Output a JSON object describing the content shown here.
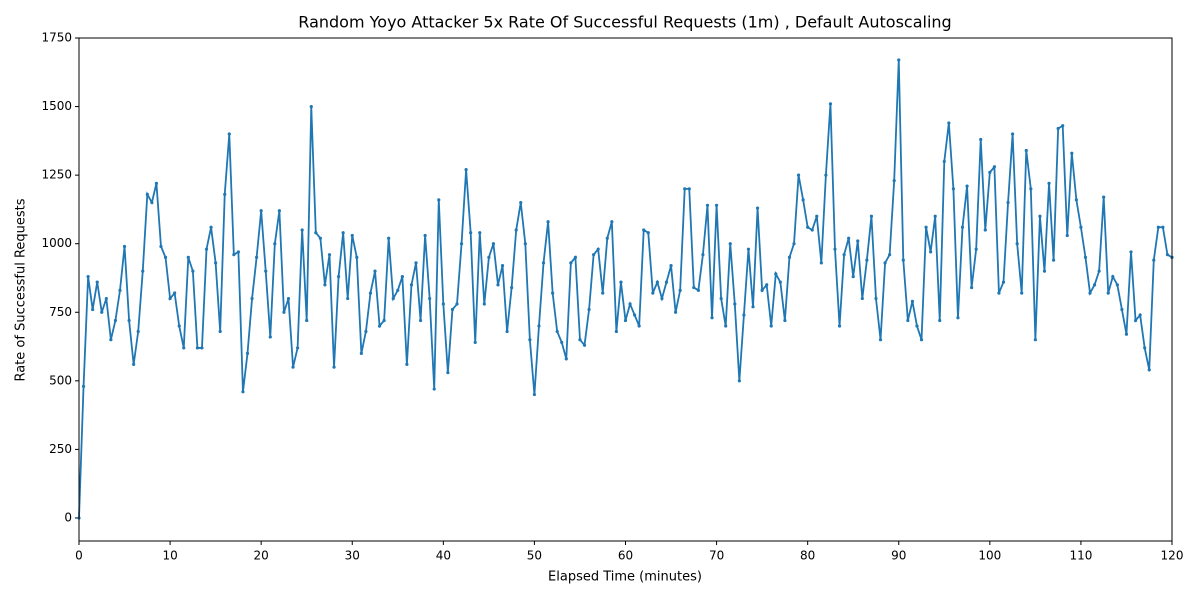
{
  "chart_data": {
    "type": "line",
    "title": "Random Yoyo Attacker 5x Rate Of Successful Requests (1m) , Default Autoscaling",
    "x_label": "Elapsed Time (minutes)",
    "y_label": "Rate of Successful Requests",
    "xlim": [
      0,
      120
    ],
    "xticks": [
      0,
      10,
      20,
      30,
      40,
      50,
      60,
      70,
      80,
      90,
      100,
      110,
      120
    ],
    "ylim": [
      -84,
      1750
    ],
    "yticks": [
      0,
      250,
      500,
      750,
      1000,
      1250,
      1500,
      1750
    ],
    "grid": false,
    "x": [
      0,
      0.5,
      1,
      1.5,
      2,
      2.5,
      3,
      3.5,
      4,
      4.5,
      5,
      5.5,
      6,
      6.5,
      7,
      7.5,
      8,
      8.5,
      9,
      9.5,
      10,
      10.5,
      11,
      11.5,
      12,
      12.5,
      13,
      13.5,
      14,
      14.5,
      15,
      15.5,
      16,
      16.5,
      17,
      17.5,
      18,
      18.5,
      19,
      19.5,
      20,
      20.5,
      21,
      21.5,
      22,
      22.5,
      23,
      23.5,
      24,
      24.5,
      25,
      25.5,
      26,
      26.5,
      27,
      27.5,
      28,
      28.5,
      29,
      29.5,
      30,
      30.5,
      31,
      31.5,
      32,
      32.5,
      33,
      33.5,
      34,
      34.5,
      35,
      35.5,
      36,
      36.5,
      37,
      37.5,
      38,
      38.5,
      39,
      39.5,
      40,
      40.5,
      41,
      41.5,
      42,
      42.5,
      43,
      43.5,
      44,
      44.5,
      45,
      45.5,
      46,
      46.5,
      47,
      47.5,
      48,
      48.5,
      49,
      49.5,
      50,
      50.5,
      51,
      51.5,
      52,
      52.5,
      53,
      53.5,
      54,
      54.5,
      55,
      55.5,
      56,
      56.5,
      57,
      57.5,
      58,
      58.5,
      59,
      59.5,
      60,
      60.5,
      61,
      61.5,
      62,
      62.5,
      63,
      63.5,
      64,
      64.5,
      65,
      65.5,
      66,
      66.5,
      67,
      67.5,
      68,
      68.5,
      69,
      69.5,
      70,
      70.5,
      71,
      71.5,
      72,
      72.5,
      73,
      73.5,
      74,
      74.5,
      75,
      75.5,
      76,
      76.5,
      77,
      77.5,
      78,
      78.5,
      79,
      79.5,
      80,
      80.5,
      81,
      81.5,
      82,
      82.5,
      83,
      83.5,
      84,
      84.5,
      85,
      85.5,
      86,
      86.5,
      87,
      87.5,
      88,
      88.5,
      89,
      89.5,
      90,
      90.5,
      91,
      91.5,
      92,
      92.5,
      93,
      93.5,
      94,
      94.5,
      95,
      95.5,
      96,
      96.5,
      97,
      97.5,
      98,
      98.5,
      99,
      99.5,
      100,
      100.5,
      101,
      101.5,
      102,
      102.5,
      103,
      103.5,
      104,
      104.5,
      105,
      105.5,
      106,
      106.5,
      107,
      107.5,
      108,
      108.5,
      109,
      109.5,
      110,
      110.5,
      111,
      111.5,
      112,
      112.5,
      113,
      113.5,
      114,
      114.5,
      115,
      115.5,
      116,
      116.5,
      117,
      117.5,
      118,
      118.5,
      119,
      119.5,
      120
    ],
    "series": [
      {
        "color": "#1f77b4",
        "values": [
          0,
          480,
          880,
          760,
          860,
          750,
          800,
          650,
          720,
          830,
          990,
          720,
          560,
          680,
          900,
          1180,
          1150,
          1220,
          990,
          950,
          800,
          820,
          700,
          620,
          950,
          900,
          620,
          620,
          980,
          1060,
          930,
          680,
          1180,
          1400,
          960,
          970,
          460,
          600,
          800,
          950,
          1120,
          900,
          660,
          1000,
          1120,
          750,
          800,
          550,
          620,
          1050,
          720,
          1500,
          1040,
          1020,
          850,
          960,
          550,
          880,
          1040,
          800,
          1030,
          950,
          600,
          680,
          820,
          900,
          700,
          720,
          1020,
          800,
          830,
          880,
          560,
          850,
          930,
          720,
          1030,
          800,
          470,
          1160,
          780,
          530,
          760,
          780,
          1000,
          1270,
          1040,
          640,
          1040,
          780,
          950,
          1000,
          850,
          920,
          680,
          840,
          1050,
          1150,
          1000,
          650,
          450,
          700,
          930,
          1080,
          820,
          680,
          640,
          580,
          930,
          950,
          650,
          630,
          760,
          960,
          980,
          820,
          1020,
          1080,
          680,
          860,
          720,
          780,
          740,
          700,
          1050,
          1040,
          820,
          860,
          800,
          860,
          920,
          750,
          830,
          1200,
          1200,
          840,
          830,
          960,
          1140,
          730,
          1140,
          800,
          700,
          1000,
          780,
          500,
          740,
          980,
          770,
          1130,
          830,
          850,
          700,
          890,
          860,
          720,
          950,
          1000,
          1250,
          1160,
          1060,
          1050,
          1100,
          930,
          1250,
          1510,
          980,
          700,
          960,
          1020,
          880,
          1010,
          800,
          940,
          1100,
          800,
          650,
          930,
          960,
          1230,
          1670,
          940,
          720,
          790,
          700,
          650,
          1060,
          970,
          1100,
          720,
          1300,
          1440,
          1200,
          730,
          1060,
          1210,
          840,
          980,
          1380,
          1050,
          1260,
          1280,
          820,
          860,
          1150,
          1400,
          1000,
          820,
          1340,
          1200,
          650,
          1100,
          900,
          1220,
          940,
          1420,
          1430,
          1030,
          1330,
          1160,
          1060,
          950,
          820,
          850,
          900,
          1170,
          820,
          880,
          850,
          760,
          670,
          970,
          720,
          740,
          620,
          540,
          940,
          1060,
          1060,
          960,
          950
        ]
      }
    ]
  }
}
